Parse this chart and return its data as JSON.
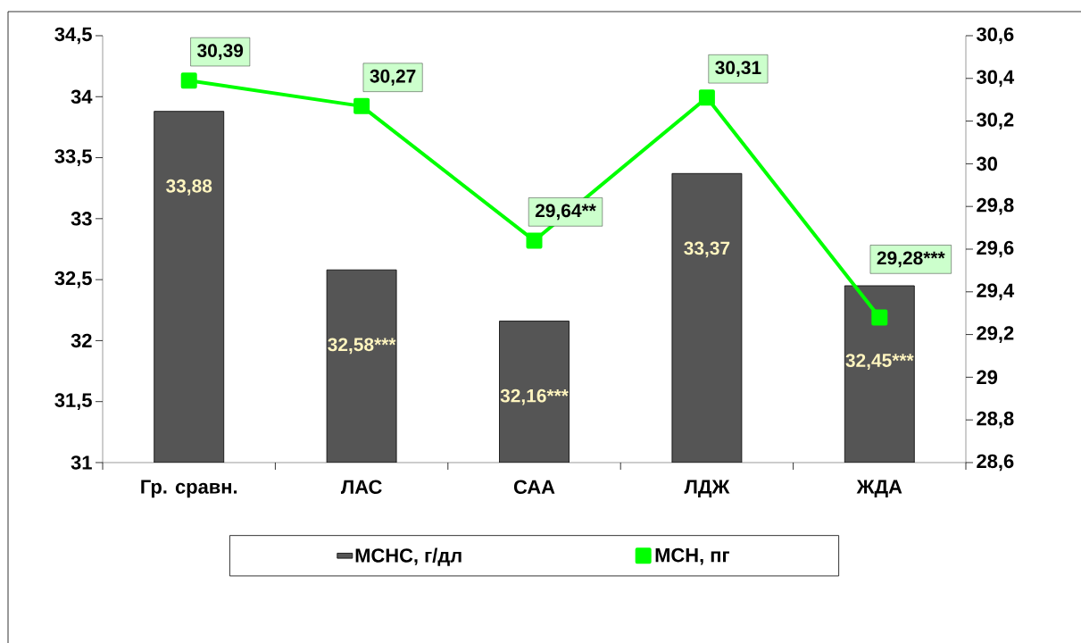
{
  "chart_data": {
    "type": "bar",
    "categories": [
      "Гр. сравн.",
      "ЛАС",
      "САА",
      "ЛДЖ",
      "ЖДА"
    ],
    "series": [
      {
        "name": "МСНС, г/дл",
        "color": "#555555",
        "values": [
          33.88,
          32.58,
          32.16,
          33.37,
          32.45
        ],
        "value_labels": [
          "33,88",
          "32,58***",
          "32,16***",
          "33,37",
          "32,45***"
        ]
      },
      {
        "name": "МСН, пг",
        "type": "line",
        "axis": "y2",
        "color": "#00ff00",
        "marker": "square",
        "values": [
          30.39,
          30.27,
          29.64,
          30.31,
          29.28
        ],
        "value_labels": [
          "30,39",
          "30,27",
          "29,64**",
          "30,31",
          "29,28***"
        ]
      }
    ],
    "ylim": [
      31,
      34.5
    ],
    "yticks": [
      31,
      {
        "value": 31.5,
        "label": "31,5"
      },
      32,
      {
        "value": 32.5,
        "label": "32,5"
      },
      33,
      {
        "value": 33.5,
        "label": "33,5"
      },
      34,
      {
        "value": 34.5,
        "label": "34,5"
      }
    ],
    "y2lim": [
      28.6,
      30.6
    ],
    "y2ticks": [
      {
        "value": 28.6,
        "label": "28,6"
      },
      {
        "value": 28.8,
        "label": "28,8"
      },
      29,
      {
        "value": 29.2,
        "label": "29,2"
      },
      {
        "value": 29.4,
        "label": "29,4"
      },
      {
        "value": 29.6,
        "label": "29,6"
      },
      {
        "value": 29.8,
        "label": "29,8"
      },
      30,
      {
        "value": 30.2,
        "label": "30,2"
      },
      {
        "value": 30.4,
        "label": "30,4"
      },
      {
        "value": 30.6,
        "label": "30,6"
      }
    ],
    "legend": "bottom",
    "grid": false
  }
}
